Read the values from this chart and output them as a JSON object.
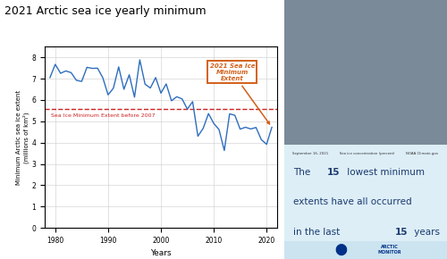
{
  "title": "2021 Arctic sea ice yearly minimum",
  "title_fontsize": 9,
  "xlabel": "Years",
  "ylabel": "Minimum Arctic sea ice extent\n(millions of km²)",
  "xlim": [
    1978,
    2022
  ],
  "ylim": [
    0,
    8.5
  ],
  "yticks": [
    0,
    1,
    2,
    3,
    4,
    5,
    6,
    7,
    8
  ],
  "xticks": [
    1980,
    1990,
    2000,
    2010,
    2020
  ],
  "line_color": "#2E6EBE",
  "dashed_line_color": "#CC2222",
  "dashed_line_y": 5.57,
  "dashed_label": "Sea Ice Minimum Extent before 2007",
  "annotation_box_text": "2021 Sea Ice\nMinimum\nExtent",
  "annotation_box_color": "#D2601A",
  "background_color": "#ffffff",
  "text_color": "#1a3a6e",
  "right_bg_color": "#cde4f0",
  "img_placeholder_color": "#7a8a99",
  "years": [
    1979,
    1980,
    1981,
    1982,
    1983,
    1984,
    1985,
    1986,
    1987,
    1988,
    1989,
    1990,
    1991,
    1992,
    1993,
    1994,
    1995,
    1996,
    1997,
    1998,
    1999,
    2000,
    2001,
    2002,
    2003,
    2004,
    2005,
    2006,
    2007,
    2008,
    2009,
    2010,
    2011,
    2012,
    2013,
    2014,
    2015,
    2016,
    2017,
    2018,
    2019,
    2020,
    2021
  ],
  "values": [
    7.05,
    7.67,
    7.25,
    7.36,
    7.28,
    6.92,
    6.87,
    7.53,
    7.48,
    7.49,
    7.04,
    6.24,
    6.55,
    7.55,
    6.5,
    7.18,
    6.13,
    7.88,
    6.74,
    6.56,
    7.05,
    6.32,
    6.75,
    5.96,
    6.15,
    6.05,
    5.57,
    5.92,
    4.3,
    4.67,
    5.36,
    4.9,
    4.61,
    3.63,
    5.35,
    5.28,
    4.63,
    4.72,
    4.64,
    4.71,
    4.14,
    3.92,
    4.72
  ]
}
